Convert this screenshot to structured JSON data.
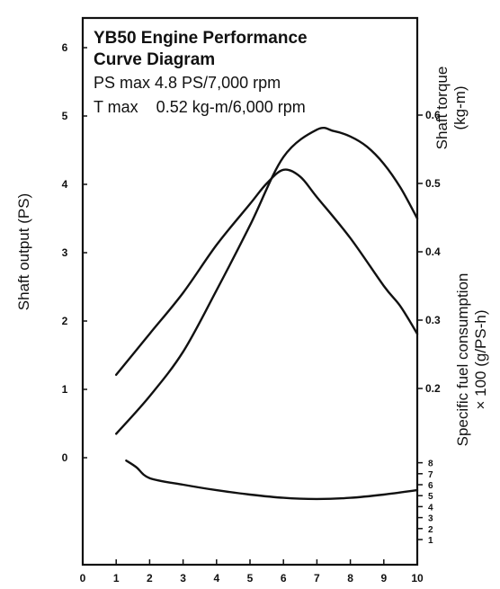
{
  "chart_data": {
    "type": "line",
    "title_lines": [
      "YB50 Engine Performance",
      "Curve Diagram",
      "PS max 4.8 PS/7,000 rpm",
      "T max    0.52 kg-m/6,000 rpm"
    ],
    "xlabel": "",
    "ylabel_left": "Shaft output (PS)",
    "ylabel_right_torque": "Shaft torque (kg-m)",
    "ylabel_right_fuel": "Specific fuel consumption × 100 (g/PS-h)",
    "x_ticks": [
      "0",
      "1",
      "2",
      "3",
      "4",
      "5",
      "6",
      "7",
      "8",
      "9",
      "10"
    ],
    "y_left_ticks": [
      "0",
      "1",
      "2",
      "3",
      "4",
      "5",
      "6"
    ],
    "y_right_torque_ticks": [
      "0.2",
      "0.3",
      "0.4",
      "0.5",
      "0.6"
    ],
    "y_right_fuel_ticks": [
      "1",
      "2",
      "3",
      "4",
      "5",
      "6",
      "7",
      "8"
    ],
    "xlim": [
      0,
      10
    ],
    "ylim_left": [
      0,
      6
    ],
    "grid": false,
    "series": [
      {
        "name": "Shaft output",
        "axis": "PS",
        "x": [
          1.0,
          2.0,
          3.0,
          4.0,
          5.0,
          6.0,
          7.0,
          7.5,
          8.0,
          8.5,
          9.0,
          9.5,
          10.0
        ],
        "y": [
          0.35,
          0.9,
          1.55,
          2.45,
          3.4,
          4.4,
          4.8,
          4.78,
          4.7,
          4.55,
          4.3,
          3.95,
          3.5
        ]
      },
      {
        "name": "Shaft torque",
        "axis": "kg-m",
        "x": [
          1.0,
          2.0,
          3.0,
          4.0,
          5.0,
          5.5,
          6.0,
          6.5,
          7.0,
          8.0,
          9.0,
          9.5,
          10.0
        ],
        "y": [
          0.22,
          0.28,
          0.34,
          0.41,
          0.47,
          0.5,
          0.52,
          0.51,
          0.48,
          0.42,
          0.35,
          0.32,
          0.28
        ]
      },
      {
        "name": "Specific fuel consumption",
        "axis": "g/PS-h ×100",
        "x": [
          1.3,
          1.6,
          2.0,
          3.0,
          4.0,
          5.0,
          6.0,
          7.0,
          8.0,
          9.0,
          10.0
        ],
        "y": [
          8.2,
          7.6,
          6.6,
          6.0,
          5.5,
          5.1,
          4.8,
          4.7,
          4.8,
          5.1,
          5.5
        ]
      }
    ]
  }
}
